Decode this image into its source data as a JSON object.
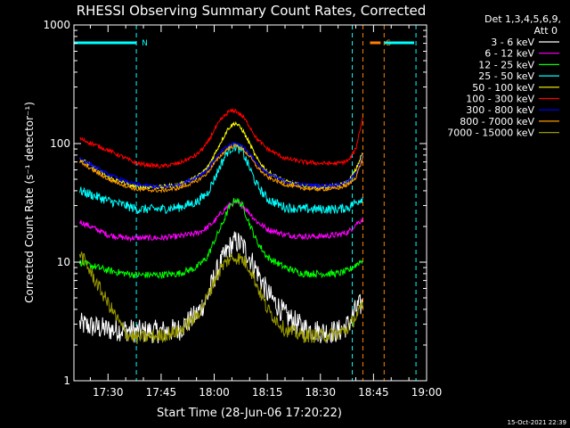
{
  "chart_data": {
    "type": "line",
    "title": "RHESSI Observing Summary Count Rates, Corrected",
    "xlabel": "Start Time (28-Jun-06 17:20:22)",
    "ylabel": "Corrected Count Rate (s⁻¹ detector⁻¹)",
    "yscale": "log",
    "ylim": [
      1,
      1000
    ],
    "xlim": [
      "17:20:22",
      "19:00:00"
    ],
    "x_ticks": [
      "17:30",
      "17:45",
      "18:00",
      "18:15",
      "18:30",
      "18:45",
      "19:00"
    ],
    "y_ticks": [
      "1",
      "10",
      "100",
      "1000"
    ],
    "grid": false,
    "legend_placement": "right",
    "legend_header": [
      "Det 1,3,4,5,6,9,",
      "Att 0"
    ],
    "footer_timestamp": "15-Oct-2021 22:39",
    "flags": [
      {
        "label": "N",
        "color": "#00ffff",
        "from": "17:20",
        "to": "17:38"
      },
      {
        "label": "S",
        "color": "#ff8000",
        "from": "18:44",
        "to": "18:47"
      }
    ],
    "flag_tail_color": "#00ffff",
    "vlines": [
      {
        "time": "17:38",
        "color": "#00ffff"
      },
      {
        "time": "18:39",
        "color": "#00ffff"
      },
      {
        "time": "18:42",
        "color": "#ff8000"
      },
      {
        "time": "18:48",
        "color": "#ff8000"
      },
      {
        "time": "18:57",
        "color": "#00ffff"
      }
    ],
    "x_minutes": [
      22,
      30,
      35,
      38,
      45,
      50,
      55,
      58,
      60,
      62,
      64,
      66,
      68,
      70,
      72,
      75,
      80,
      85,
      90,
      95,
      98,
      100,
      102
    ],
    "series": [
      {
        "name": "3 - 6 keV",
        "color": "#ffffff",
        "noise": 0.1,
        "values": [
          3.0,
          2.7,
          2.7,
          2.6,
          2.6,
          2.7,
          3.6,
          5.0,
          7.5,
          10,
          13,
          15,
          14,
          11,
          8.5,
          5.5,
          3.6,
          2.8,
          2.6,
          2.6,
          3.0,
          4,
          4.5
        ]
      },
      {
        "name": "6 - 12 keV",
        "color": "#ff00ff",
        "noise": 0.025,
        "values": [
          22,
          17,
          16,
          16,
          16,
          16.5,
          17.5,
          19.5,
          22,
          26,
          30,
          32,
          30,
          26,
          22,
          19,
          17,
          16.5,
          16.5,
          17,
          18,
          21,
          23
        ]
      },
      {
        "name": "12 - 25 keV",
        "color": "#00ff00",
        "noise": 0.03,
        "values": [
          10,
          8.5,
          8,
          7.8,
          7.8,
          8,
          9,
          11,
          15,
          20,
          28,
          34,
          30,
          21,
          15,
          11,
          9,
          8,
          8,
          8,
          8.5,
          9.5,
          10.5
        ]
      },
      {
        "name": "25 - 50 keV",
        "color": "#00ffff",
        "noise": 0.04,
        "values": [
          40,
          33,
          30,
          28,
          28,
          29,
          32,
          38,
          50,
          68,
          88,
          95,
          85,
          62,
          45,
          34,
          29,
          28,
          28,
          28,
          29,
          32,
          35
        ]
      },
      {
        "name": "50 - 100 keV",
        "color": "#ffff00",
        "noise": 0.018,
        "values": [
          75,
          52,
          46,
          43,
          43,
          45,
          52,
          62,
          80,
          105,
          135,
          150,
          130,
          100,
          75,
          58,
          48,
          44,
          43,
          44,
          48,
          60,
          85
        ]
      },
      {
        "name": "100 - 300 keV",
        "color": "#ff0000",
        "noise": 0.018,
        "values": [
          110,
          88,
          75,
          68,
          64,
          68,
          80,
          100,
          130,
          160,
          185,
          190,
          170,
          140,
          110,
          90,
          75,
          70,
          68,
          68,
          72,
          90,
          170
        ]
      },
      {
        "name": "300 - 800 keV",
        "color": "#0000ff",
        "noise": 0.015,
        "values": [
          75,
          55,
          48,
          45,
          43,
          45,
          52,
          60,
          72,
          85,
          96,
          100,
          95,
          82,
          68,
          56,
          48,
          45,
          44,
          45,
          48,
          56,
          80
        ]
      },
      {
        "name": "800 - 7000 keV",
        "color": "#ff9900",
        "noise": 0.015,
        "values": [
          70,
          50,
          44,
          41,
          40,
          42,
          48,
          56,
          68,
          80,
          92,
          96,
          90,
          78,
          64,
          52,
          45,
          42,
          41,
          42,
          45,
          52,
          75
        ]
      },
      {
        "name": "7000 - 15000 keV",
        "color": "#999900",
        "noise": 0.06,
        "values": [
          12,
          4.5,
          2.5,
          2.3,
          2.4,
          2.6,
          3.5,
          5,
          7,
          9,
          10.5,
          11,
          10.5,
          9,
          6.5,
          4,
          2.7,
          2.4,
          2.4,
          2.5,
          2.8,
          3.5,
          4.2
        ]
      }
    ]
  }
}
